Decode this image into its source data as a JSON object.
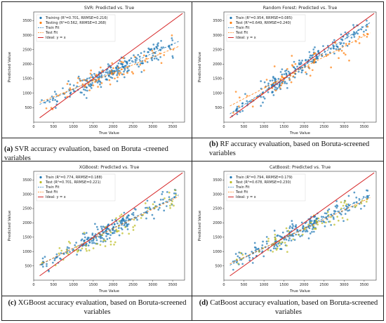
{
  "captions": [
    {
      "tag": "(a)",
      "text": " SVR accuracy evaluation, based on Boruta -creened variables"
    },
    {
      "tag": "(b)",
      "text": " RF accuracy evaluation, based on Boruta-screened variables"
    },
    {
      "tag": "(c)",
      "text": " XGBoost accuracy evaluation, based on Boruta-screened variables"
    },
    {
      "tag": "(d)",
      "text": " CatBoost accuracy evaluation, based on Boruta-screened variables"
    }
  ],
  "colors": {
    "train": "#1f77b4",
    "test_orange": "#ff7f0e",
    "test_green": "#bcbd22",
    "ideal": "#d62728"
  },
  "chart_data": [
    {
      "type": "scatter",
      "title": "SVR: Predicted vs. True",
      "xlabel": "True Value",
      "ylabel": "Predicted Value",
      "xlim": [
        0,
        3800
      ],
      "ylim": [
        0,
        3800
      ],
      "xticks": [
        0,
        500,
        1000,
        1500,
        2000,
        2500,
        3000,
        3500
      ],
      "yticks": [
        500,
        1000,
        1500,
        2000,
        2500,
        3000,
        3500
      ],
      "legend_position": "top-left",
      "legend": [
        "Training (R²=0.701, RRMSE=0.216)",
        "Testing (R²=0.562, RRMSE=0.268)",
        "Train Fit",
        "Test Fit",
        "Ideal: y = x"
      ],
      "series": [
        {
          "name": "Training (R²=0.701, RRMSE=0.216)",
          "kind": "train",
          "slope": 0.62,
          "intercept": 520,
          "seed": 11
        },
        {
          "name": "Testing (R²=0.562, RRMSE=0.268)",
          "kind": "test",
          "color": "#ff7f0e",
          "slope": 0.55,
          "intercept": 600,
          "seed": 12
        },
        {
          "name": "Train Fit",
          "kind": "fit",
          "slope": 0.62,
          "intercept": 520
        },
        {
          "name": "Test Fit",
          "kind": "testfit",
          "slope": 0.55,
          "intercept": 600
        },
        {
          "name": "Ideal: y = x",
          "kind": "ideal"
        }
      ]
    },
    {
      "type": "scatter",
      "title": "Random Forest: Predicted vs. True",
      "xlabel": "True Value",
      "ylabel": "Predicted Value",
      "xlim": [
        0,
        3800
      ],
      "ylim": [
        0,
        3800
      ],
      "xticks": [
        0,
        500,
        1000,
        1500,
        2000,
        2500,
        3000,
        3500
      ],
      "yticks": [
        500,
        1000,
        1500,
        2000,
        2500,
        3000,
        3500
      ],
      "legend_position": "top-left",
      "legend": [
        "Train (R²=0.954, RRMSE=0.085)",
        "Test (R²=0.649, RRMSE=0.240)",
        "Train Fit",
        "Test Fit",
        "Ideal: y = x"
      ],
      "series": [
        {
          "name": "Train (R²=0.954, RRMSE=0.085)",
          "kind": "train",
          "slope": 0.9,
          "intercept": 150,
          "seed": 21
        },
        {
          "name": "Test (R²=0.649, RRMSE=0.240)",
          "kind": "test",
          "color": "#ff7f0e",
          "slope": 0.72,
          "intercept": 450,
          "seed": 22
        },
        {
          "name": "Train Fit",
          "kind": "fit",
          "slope": 0.9,
          "intercept": 150
        },
        {
          "name": "Test Fit",
          "kind": "testfit",
          "slope": 0.72,
          "intercept": 450
        },
        {
          "name": "Ideal: y = x",
          "kind": "ideal"
        }
      ]
    },
    {
      "type": "scatter",
      "title": "XGBoost: Predicted vs. True",
      "xlabel": "True Value",
      "ylabel": "Predicted Value",
      "xlim": [
        0,
        3800
      ],
      "ylim": [
        0,
        3800
      ],
      "xticks": [
        0,
        500,
        1000,
        1500,
        2000,
        2500,
        3000,
        3500
      ],
      "yticks": [
        500,
        1000,
        1500,
        2000,
        2500,
        3000,
        3500
      ],
      "legend_position": "top-left",
      "legend": [
        "Train (R²=0.774, RRMSE=0.188)",
        "Test (R²=0.701, RRMSE=0.221)",
        "Train Fit",
        "Test Fit",
        "Ideal: y = x"
      ],
      "series": [
        {
          "name": "Train (R²=0.774, RRMSE=0.188)",
          "kind": "train",
          "slope": 0.7,
          "intercept": 420,
          "seed": 31
        },
        {
          "name": "Test (R²=0.701, RRMSE=0.221)",
          "kind": "test",
          "color": "#bcbd22",
          "slope": 0.68,
          "intercept": 440,
          "seed": 32
        },
        {
          "name": "Train Fit",
          "kind": "fit",
          "slope": 0.7,
          "intercept": 420
        },
        {
          "name": "Test Fit",
          "kind": "testfit",
          "slope": 0.68,
          "intercept": 440
        },
        {
          "name": "Ideal: y = x",
          "kind": "ideal"
        }
      ]
    },
    {
      "type": "scatter",
      "title": "CatBoost: Predicted vs. True",
      "xlabel": "True Value",
      "ylabel": "Predicted Value",
      "xlim": [
        0,
        3800
      ],
      "ylim": [
        0,
        3800
      ],
      "xticks": [
        0,
        500,
        1000,
        1500,
        2000,
        2500,
        3000,
        3500
      ],
      "yticks": [
        500,
        1000,
        1500,
        2000,
        2500,
        3000,
        3500
      ],
      "legend_position": "top-left",
      "legend": [
        "Train (R²=0.794, RRMSE=0.179)",
        "Test (R²=0.678, RRMSE=0.230)",
        "Train Fit",
        "Test Fit",
        "Ideal: y = x"
      ],
      "series": [
        {
          "name": "Train (R²=0.794, RRMSE=0.179)",
          "kind": "train",
          "slope": 0.7,
          "intercept": 420,
          "seed": 41
        },
        {
          "name": "Test (R²=0.678, RRMSE=0.230)",
          "kind": "test",
          "color": "#bcbd22",
          "slope": 0.66,
          "intercept": 470,
          "seed": 42
        },
        {
          "name": "Train Fit",
          "kind": "fit",
          "slope": 0.7,
          "intercept": 420
        },
        {
          "name": "Test Fit",
          "kind": "testfit",
          "slope": 0.66,
          "intercept": 470
        },
        {
          "name": "Ideal: y = x",
          "kind": "ideal"
        }
      ]
    }
  ]
}
